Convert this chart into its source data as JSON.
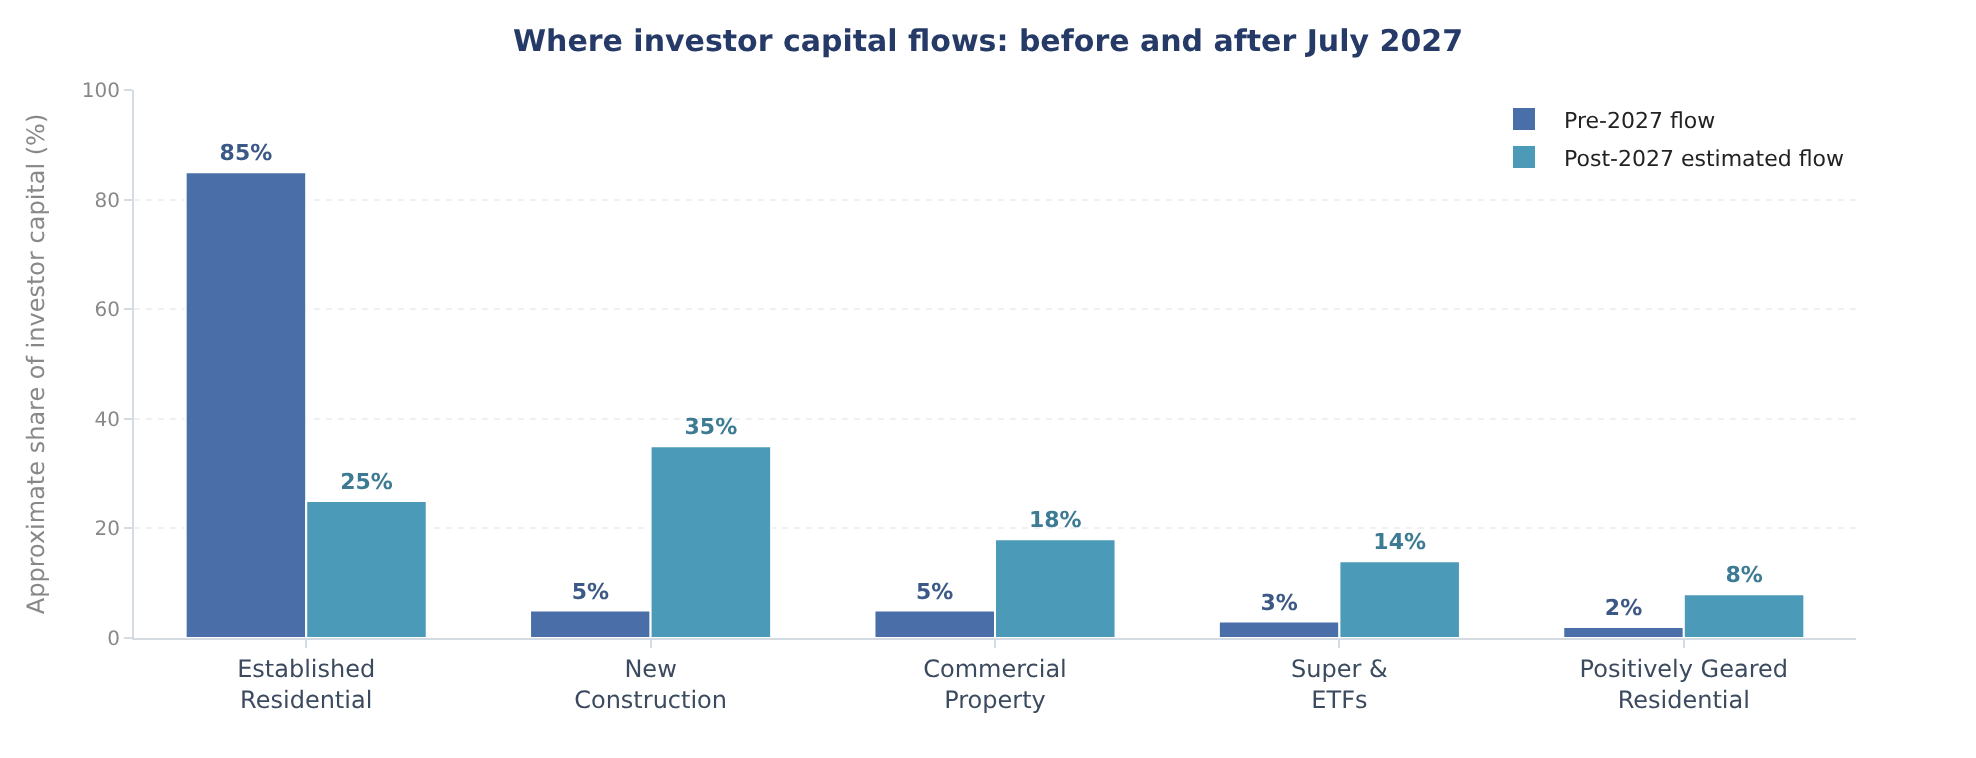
{
  "chart_data": {
    "type": "bar",
    "title": "Where investor capital flows: before and after July 2027",
    "ylabel": "Approximate share of investor capital (%)",
    "categories": [
      "Established\nResidential",
      "New\nConstruction",
      "Commercial\nProperty",
      "Super &\nETFs",
      "Positively Geared\nResidential"
    ],
    "series": [
      {
        "name": "Pre-2027 flow",
        "color": "#4a6ea8",
        "values": [
          85,
          5,
          5,
          3,
          2
        ],
        "value_labels": [
          "85%",
          "5%",
          "5%",
          "3%",
          "2%"
        ]
      },
      {
        "name": "Post-2027 estimated flow",
        "color": "#4b9ab8",
        "values": [
          25,
          35,
          18,
          14,
          8
        ],
        "value_labels": [
          "25%",
          "35%",
          "18%",
          "14%",
          "8%"
        ]
      }
    ],
    "ylim": [
      0,
      100
    ],
    "yticks": [
      0,
      20,
      40,
      60,
      80,
      100
    ],
    "grid": "y",
    "legend": "top right"
  }
}
